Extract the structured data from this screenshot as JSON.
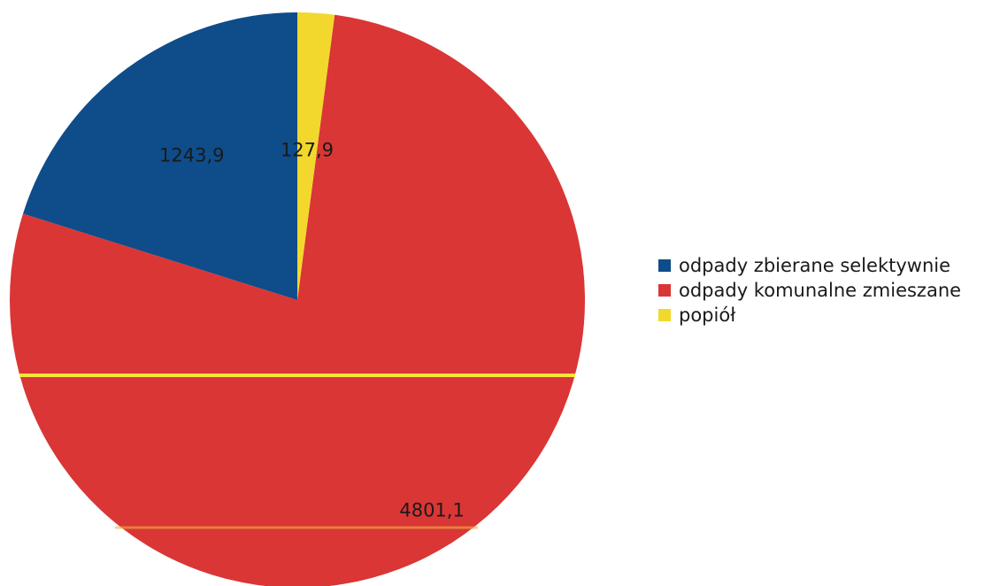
{
  "chart_data": {
    "type": "pie",
    "title": "",
    "categories": [
      "odpady zbierane selektywnie",
      "odpady komunalne zmieszane",
      "popiół"
    ],
    "values": [
      1243.9,
      4801.1,
      127.9
    ],
    "value_labels": [
      "1243,9",
      "4801,1",
      "127,9"
    ],
    "colors": [
      "#0f4c8a",
      "#d93635",
      "#f2d82c"
    ],
    "start_direction": "top",
    "order": "counter-clockwise",
    "legend_position": "right"
  }
}
